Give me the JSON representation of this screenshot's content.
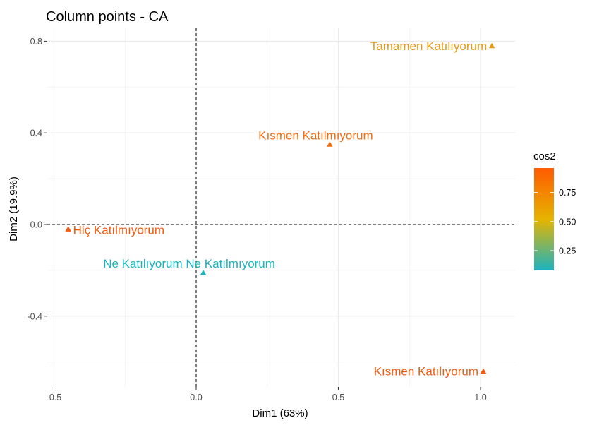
{
  "chart_data": {
    "type": "scatter",
    "title": "Column points - CA",
    "xlabel": "Dim1 (63%)",
    "ylabel": "Dim2 (19.9%)",
    "xlim": [
      -0.52,
      1.12
    ],
    "ylim": [
      -0.72,
      0.85
    ],
    "x_ticks": [
      -0.5,
      0.0,
      0.5,
      1.0
    ],
    "x_tick_labels": [
      "-0.5",
      "0.0",
      "0.5",
      "1.0"
    ],
    "y_ticks": [
      -0.4,
      0.0,
      0.4,
      0.8
    ],
    "y_tick_labels": [
      "-0.4",
      "0.0",
      "0.4",
      "0.8"
    ],
    "grid": true,
    "reference_lines": {
      "x": 0,
      "y": 0,
      "style": "dashed"
    },
    "marker": "triangle",
    "points": [
      {
        "label": "Tamamen Katılıyorum",
        "x": 1.04,
        "y": 0.78,
        "cos2": 0.58,
        "color": "#E89A0C",
        "label_side": "left"
      },
      {
        "label": "Kısmen Katılmıyorum",
        "x": 0.47,
        "y": 0.35,
        "cos2": 0.85,
        "color": "#F26B10",
        "label_side": "above"
      },
      {
        "label": "Hiç Katılmıyorum",
        "x": -0.45,
        "y": -0.02,
        "cos2": 0.95,
        "color": "#F25A0F",
        "label_side": "right"
      },
      {
        "label": "Ne Katılıyorum Ne Katılmıyorum",
        "x": 0.025,
        "y": -0.21,
        "cos2": 0.08,
        "color": "#1AB3C0",
        "label_side": "above"
      },
      {
        "label": "Kısmen Katılıyorum",
        "x": 1.01,
        "y": -0.64,
        "cos2": 0.92,
        "color": "#F25A0F",
        "label_side": "left"
      }
    ],
    "legend": {
      "title": "cos2",
      "position": "right",
      "ticks": [
        0.25,
        0.5,
        0.75
      ],
      "tick_labels": [
        "0.25",
        "0.50",
        "0.75"
      ],
      "range": [
        0.08,
        0.96
      ],
      "gradient": [
        "#1AB3C0",
        "#E6B400",
        "#FF5A00"
      ]
    }
  }
}
